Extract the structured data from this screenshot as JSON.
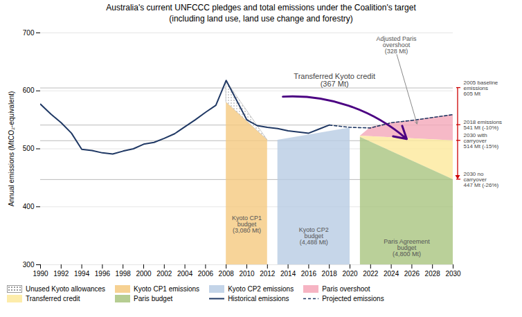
{
  "chart_data": {
    "type": "line",
    "title": "Australia's current UNFCCC pledges and total emissions under the Coalition's target\n(including land use, land use change and forestry)",
    "ylabel": "Annual emissions (MtCO₂-equivalent)",
    "xlim": [
      1990,
      2030
    ],
    "ylim": [
      300,
      700
    ],
    "xticks": [
      1990,
      1992,
      1994,
      1996,
      1998,
      2000,
      2002,
      2004,
      2006,
      2008,
      2010,
      2012,
      2014,
      2016,
      2018,
      2020,
      2022,
      2024,
      2026,
      2028,
      2030
    ],
    "yticks": [
      300,
      400,
      500,
      600,
      700
    ],
    "grid": true,
    "series": [
      {
        "name": "Unused Kyoto allowances",
        "type": "area",
        "color": "#999999",
        "line_style": "dotted",
        "x": [
          2008,
          2008,
          2012,
          2012
        ],
        "values": [
          580,
          617,
          515,
          515
        ]
      },
      {
        "name": "Kyoto CP1 emissions",
        "type": "area",
        "color": "#f5c97f",
        "x": [
          2008,
          2008,
          2012,
          2012
        ],
        "values": [
          300,
          580,
          515,
          300
        ]
      },
      {
        "name": "Kyoto CP2 emissions",
        "type": "area",
        "color": "#b8cce4",
        "x": [
          2013,
          2013,
          2020,
          2020
        ],
        "values": [
          300,
          515,
          536,
          300
        ]
      },
      {
        "name": "Paris overshoot",
        "type": "area",
        "color": "#f4a7b9",
        "x": [
          2021,
          2022,
          2024,
          2026,
          2028,
          2030,
          2030,
          2021
        ],
        "values": [
          522,
          537,
          545,
          549,
          554,
          559,
          514,
          522
        ]
      },
      {
        "name": "Transferred credit",
        "type": "area",
        "color": "#fde99b",
        "x": [
          2021,
          2021,
          2030,
          2030
        ],
        "values": [
          520,
          522,
          514,
          447
        ]
      },
      {
        "name": "Paris budget",
        "type": "area",
        "color": "#a9c47f",
        "x": [
          2021,
          2021,
          2030,
          2030
        ],
        "values": [
          300,
          520,
          447,
          300
        ]
      },
      {
        "name": "Historical emissions",
        "type": "line",
        "color": "#1f3864",
        "line_style": "solid",
        "x": [
          1990,
          1991,
          1992,
          1993,
          1994,
          1995,
          1996,
          1997,
          1998,
          1999,
          2000,
          2001,
          2002,
          2003,
          2004,
          2005,
          2006,
          2007,
          2008,
          2009,
          2010,
          2011,
          2012,
          2013,
          2014,
          2015,
          2016,
          2017,
          2018
        ],
        "values": [
          577,
          560,
          545,
          527,
          499,
          497,
          493,
          491,
          496,
          500,
          508,
          511,
          518,
          526,
          538,
          550,
          563,
          575,
          618,
          584,
          550,
          540,
          537,
          535,
          531,
          529,
          527,
          534,
          541
        ]
      },
      {
        "name": "Projected emissions",
        "type": "line",
        "color": "#1f3864",
        "line_style": "dashed",
        "x": [
          2018,
          2020,
          2022,
          2024,
          2026,
          2028,
          2030
        ],
        "values": [
          541,
          537,
          536,
          545,
          549,
          554,
          559
        ]
      }
    ],
    "reference_lines": {
      "color": "#cc0000",
      "lines": [
        {
          "value": 605,
          "label": "2005 baseline\nemissions\n605 Mt"
        },
        {
          "value": 541,
          "label": "2018 emissions\n541 Mt (-10%)"
        },
        {
          "value": 514,
          "label": "2030 with\ncarryover\n514 Mt (-15%)"
        },
        {
          "value": 447,
          "label": "2030 no\ncarryover\n447 Mt (-26%)"
        }
      ]
    },
    "annotations": [
      {
        "text": "Kyoto CP1\nbudget\n(3,080 Mt)",
        "x": 2010,
        "y": 355
      },
      {
        "text": "Kyoto CP2\nbudget\n(4,488 Mt)",
        "x": 2016.5,
        "y": 335
      },
      {
        "text": "Paris Agreement\nbudget\n(4,800 Mt)",
        "x": 2025.5,
        "y": 315
      },
      {
        "text": "Transferred Kyoto credit\n(367 Mt)",
        "x": 2018.5,
        "y": 618,
        "arrow": {
          "x1": 2013.5,
          "y1": 590,
          "x2": 2025.5,
          "y2": 517,
          "color": "#4b0082"
        }
      },
      {
        "text": "Adjusted Paris\novershoot\n(328 Mt)",
        "x": 2024.5,
        "y": 665,
        "arrow": {
          "x1": 2024.5,
          "y1": 665,
          "x2": 2026.5,
          "y2": 543,
          "color": "#888888"
        }
      }
    ]
  }
}
